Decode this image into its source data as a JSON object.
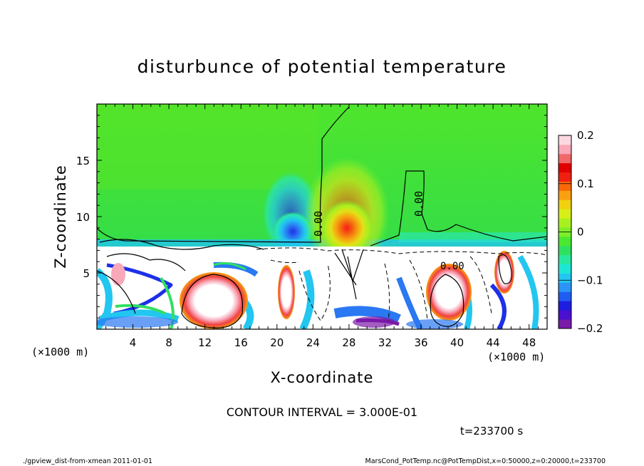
{
  "chart_data": {
    "type": "heatmap",
    "title": "disturbunce of potential temperature",
    "xlabel": "X-coordinate",
    "ylabel": "Z-coordinate",
    "x_unit": "(×1000 m)",
    "y_unit": "(×1000 m)",
    "xlim": [
      0,
      50
    ],
    "ylim": [
      0,
      20
    ],
    "xticks": [
      4,
      8,
      12,
      16,
      20,
      24,
      28,
      32,
      36,
      40,
      44,
      48
    ],
    "yticks": [
      5,
      10,
      15
    ],
    "colorbar": {
      "min": -0.2,
      "max": 0.2,
      "ticks": [
        -0.2,
        -0.1,
        0,
        0.1,
        0.2
      ],
      "tick_labels": [
        "−0.2",
        "−0.1",
        "0",
        "0.1",
        "0.2"
      ],
      "colors": [
        "#7a1aa8",
        "#4b0fd0",
        "#1d1de0",
        "#1f5cf0",
        "#2a95f5",
        "#22c6f0",
        "#1ee6d6",
        "#28e8a0",
        "#30e060",
        "#4ae830",
        "#7cee28",
        "#a8f020",
        "#d8ee18",
        "#f0d010",
        "#f8a010",
        "#f86808",
        "#f02010",
        "#e00000",
        "#f06868",
        "#f8a8b8",
        "#fcd8e0"
      ]
    },
    "contour_interval_text": "CONTOUR INTERVAL = 3.000E-01",
    "contour_labels": [
      {
        "text": "0.00",
        "x": 24.8,
        "z": 10.0
      },
      {
        "text": "0.00",
        "x": 35.4,
        "z": 11.2
      },
      {
        "text": "0.00",
        "x": 39.1,
        "z": 5.5
      }
    ],
    "features": [
      {
        "kind": "negative-anomaly",
        "x": 21.5,
        "z": 9.2,
        "value": -0.12
      },
      {
        "kind": "positive-anomaly",
        "x": 28.0,
        "z": 9.0,
        "value": 0.16
      },
      {
        "kind": "boundary-layer-top",
        "z": 7.6
      }
    ]
  },
  "footer": {
    "time_text": "t=233700 s",
    "left_text": "./gpview_dist-from-xmean  2011-01-01",
    "right_text": "MarsCond_PotTemp.nc@PotTempDist,x=0:50000,z=0:20000,t=233700"
  },
  "colors": {
    "background": "#ffffff",
    "frame": "#000000"
  }
}
